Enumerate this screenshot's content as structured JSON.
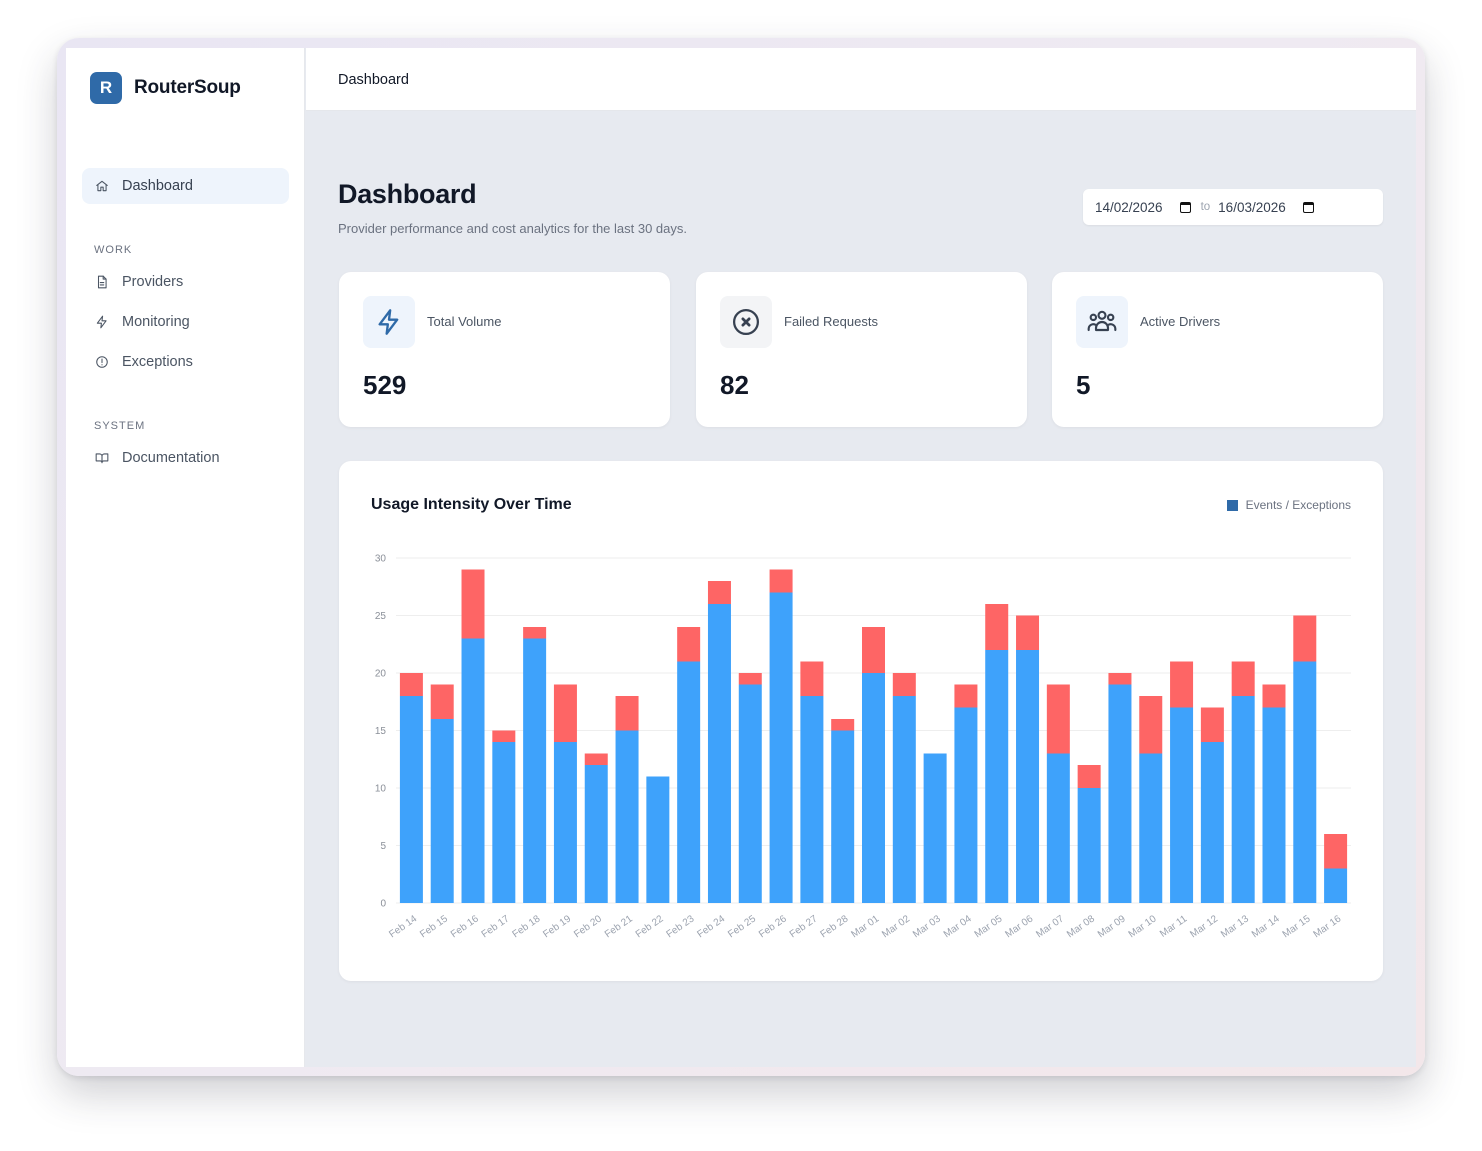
{
  "brand": {
    "initial": "R",
    "name": "RouterSoup"
  },
  "sidebar": {
    "dashboard": "Dashboard",
    "sections": {
      "work": "WORK",
      "system": "SYSTEM"
    },
    "work_items": [
      {
        "label": "Providers",
        "icon": "file-icon"
      },
      {
        "label": "Monitoring",
        "icon": "bolt-icon"
      },
      {
        "label": "Exceptions",
        "icon": "alert-circle-icon"
      }
    ],
    "system_items": [
      {
        "label": "Documentation",
        "icon": "book-icon"
      }
    ]
  },
  "topbar": {
    "breadcrumb": "Dashboard"
  },
  "page": {
    "title": "Dashboard",
    "subtitle": "Provider performance and cost analytics for the last 30 days."
  },
  "daterange": {
    "from": "14/02/2026",
    "separator": "to",
    "to": "16/03/2026"
  },
  "cards": [
    {
      "label": "Total Volume",
      "value": "529",
      "icon": "bolt-icon",
      "icon_bg": "#eef4fc",
      "icon_color": "#2f6aa8"
    },
    {
      "label": "Failed Requests",
      "value": "82",
      "icon": "x-circle-icon",
      "icon_bg": "#f3f4f6",
      "icon_color": "#374151"
    },
    {
      "label": "Active Drivers",
      "value": "5",
      "icon": "users-icon",
      "icon_bg": "#eef4fc",
      "icon_color": "#374151"
    }
  ],
  "colors": {
    "accent": "#2f6aa8",
    "events_bar": "#3ea2fb",
    "exceptions_bar": "#fe6565",
    "grid": "#eeeeee"
  },
  "chart_data": {
    "type": "bar",
    "stacked": true,
    "title": "Usage Intensity Over Time",
    "legend": {
      "label": "Events / Exceptions",
      "placement": "top-right"
    },
    "categories": [
      "Feb 14",
      "Feb 15",
      "Feb 16",
      "Feb 17",
      "Feb 18",
      "Feb 19",
      "Feb 20",
      "Feb 21",
      "Feb 22",
      "Feb 23",
      "Feb 24",
      "Feb 25",
      "Feb 26",
      "Feb 27",
      "Feb 28",
      "Mar 01",
      "Mar 02",
      "Mar 03",
      "Mar 04",
      "Mar 05",
      "Mar 06",
      "Mar 07",
      "Mar 08",
      "Mar 09",
      "Mar 10",
      "Mar 11",
      "Mar 12",
      "Mar 13",
      "Mar 14",
      "Mar 15",
      "Mar 16"
    ],
    "series": [
      {
        "values": [
          18,
          16,
          23,
          14,
          23,
          14,
          12,
          15,
          11,
          21,
          26,
          19,
          27,
          18,
          15,
          20,
          18,
          13,
          17,
          22,
          22,
          13,
          10,
          19,
          13,
          17,
          14,
          18,
          17,
          21,
          3
        ]
      },
      {
        "values": [
          2,
          3,
          6,
          1,
          1,
          5,
          1,
          3,
          0,
          3,
          2,
          1,
          2,
          3,
          1,
          4,
          2,
          0,
          2,
          4,
          3,
          6,
          2,
          1,
          5,
          4,
          3,
          3,
          2,
          4,
          3
        ]
      }
    ],
    "ylim": [
      0,
      30
    ],
    "yticks": [
      0,
      5,
      10,
      15,
      20,
      25,
      30
    ],
    "grid": true
  }
}
